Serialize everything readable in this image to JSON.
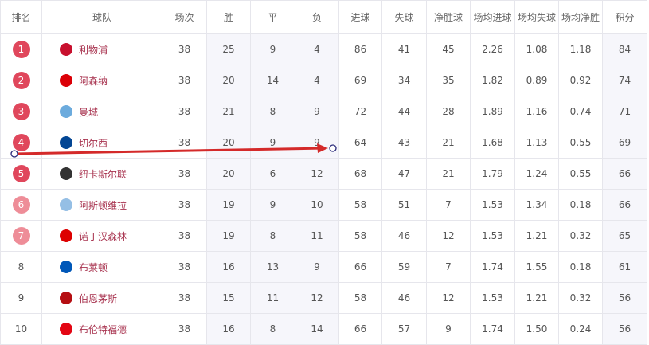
{
  "headers": [
    "排名",
    "球队",
    "场次",
    "胜",
    "平",
    "负",
    "进球",
    "失球",
    "净胜球",
    "场均进球",
    "场均失球",
    "场均净胜",
    "积分"
  ],
  "colors": {
    "badge_top": "#e0475c",
    "badge_mid": "#ee8d98",
    "team_text": "#a8334f",
    "arrow": "#d42a2a",
    "arrow_endpoint": "#2a2a7a"
  },
  "rows": [
    {
      "rank": "1",
      "team": "利物浦",
      "logo": "#c8102e",
      "played": "38",
      "w": "25",
      "d": "9",
      "l": "4",
      "gf": "86",
      "ga": "41",
      "gd": "45",
      "avg_gf": "2.26",
      "avg_ga": "1.08",
      "avg_gd": "1.18",
      "pts": "84",
      "badge": "top"
    },
    {
      "rank": "2",
      "team": "阿森纳",
      "logo": "#db0007",
      "played": "38",
      "w": "20",
      "d": "14",
      "l": "4",
      "gf": "69",
      "ga": "34",
      "gd": "35",
      "avg_gf": "1.82",
      "avg_ga": "0.89",
      "avg_gd": "0.92",
      "pts": "74",
      "badge": "top"
    },
    {
      "rank": "3",
      "team": "曼城",
      "logo": "#6cabdd",
      "played": "38",
      "w": "21",
      "d": "8",
      "l": "9",
      "gf": "72",
      "ga": "44",
      "gd": "28",
      "avg_gf": "1.89",
      "avg_ga": "1.16",
      "avg_gd": "0.74",
      "pts": "71",
      "badge": "top"
    },
    {
      "rank": "4",
      "team": "切尔西",
      "logo": "#034694",
      "played": "38",
      "w": "20",
      "d": "9",
      "l": "9",
      "gf": "64",
      "ga": "43",
      "gd": "21",
      "avg_gf": "1.68",
      "avg_ga": "1.13",
      "avg_gd": "0.55",
      "pts": "69",
      "badge": "top"
    },
    {
      "rank": "5",
      "team": "纽卡斯尔联",
      "logo": "#333333",
      "played": "38",
      "w": "20",
      "d": "6",
      "l": "12",
      "gf": "68",
      "ga": "47",
      "gd": "21",
      "avg_gf": "1.79",
      "avg_ga": "1.24",
      "avg_gd": "0.55",
      "pts": "66",
      "badge": "top"
    },
    {
      "rank": "6",
      "team": "阿斯顿维拉",
      "logo": "#95bfe5",
      "played": "38",
      "w": "19",
      "d": "9",
      "l": "10",
      "gf": "58",
      "ga": "51",
      "gd": "7",
      "avg_gf": "1.53",
      "avg_ga": "1.34",
      "avg_gd": "0.18",
      "pts": "66",
      "badge": "mid"
    },
    {
      "rank": "7",
      "team": "诺丁汉森林",
      "logo": "#dd0000",
      "played": "38",
      "w": "19",
      "d": "8",
      "l": "11",
      "gf": "58",
      "ga": "46",
      "gd": "12",
      "avg_gf": "1.53",
      "avg_ga": "1.21",
      "avg_gd": "0.32",
      "pts": "65",
      "badge": "mid"
    },
    {
      "rank": "8",
      "team": "布莱顿",
      "logo": "#0057b8",
      "played": "38",
      "w": "16",
      "d": "13",
      "l": "9",
      "gf": "66",
      "ga": "59",
      "gd": "7",
      "avg_gf": "1.74",
      "avg_ga": "1.55",
      "avg_gd": "0.18",
      "pts": "61",
      "badge": "none"
    },
    {
      "rank": "9",
      "team": "伯恩茅斯",
      "logo": "#b50e12",
      "played": "38",
      "w": "15",
      "d": "11",
      "l": "12",
      "gf": "58",
      "ga": "46",
      "gd": "12",
      "avg_gf": "1.53",
      "avg_ga": "1.21",
      "avg_gd": "0.32",
      "pts": "56",
      "badge": "none"
    },
    {
      "rank": "10",
      "team": "布伦特福德",
      "logo": "#e30613",
      "played": "38",
      "w": "16",
      "d": "8",
      "l": "14",
      "gf": "66",
      "ga": "57",
      "gd": "9",
      "avg_gf": "1.74",
      "avg_ga": "1.50",
      "avg_gd": "0.24",
      "pts": "56",
      "badge": "none"
    }
  ]
}
